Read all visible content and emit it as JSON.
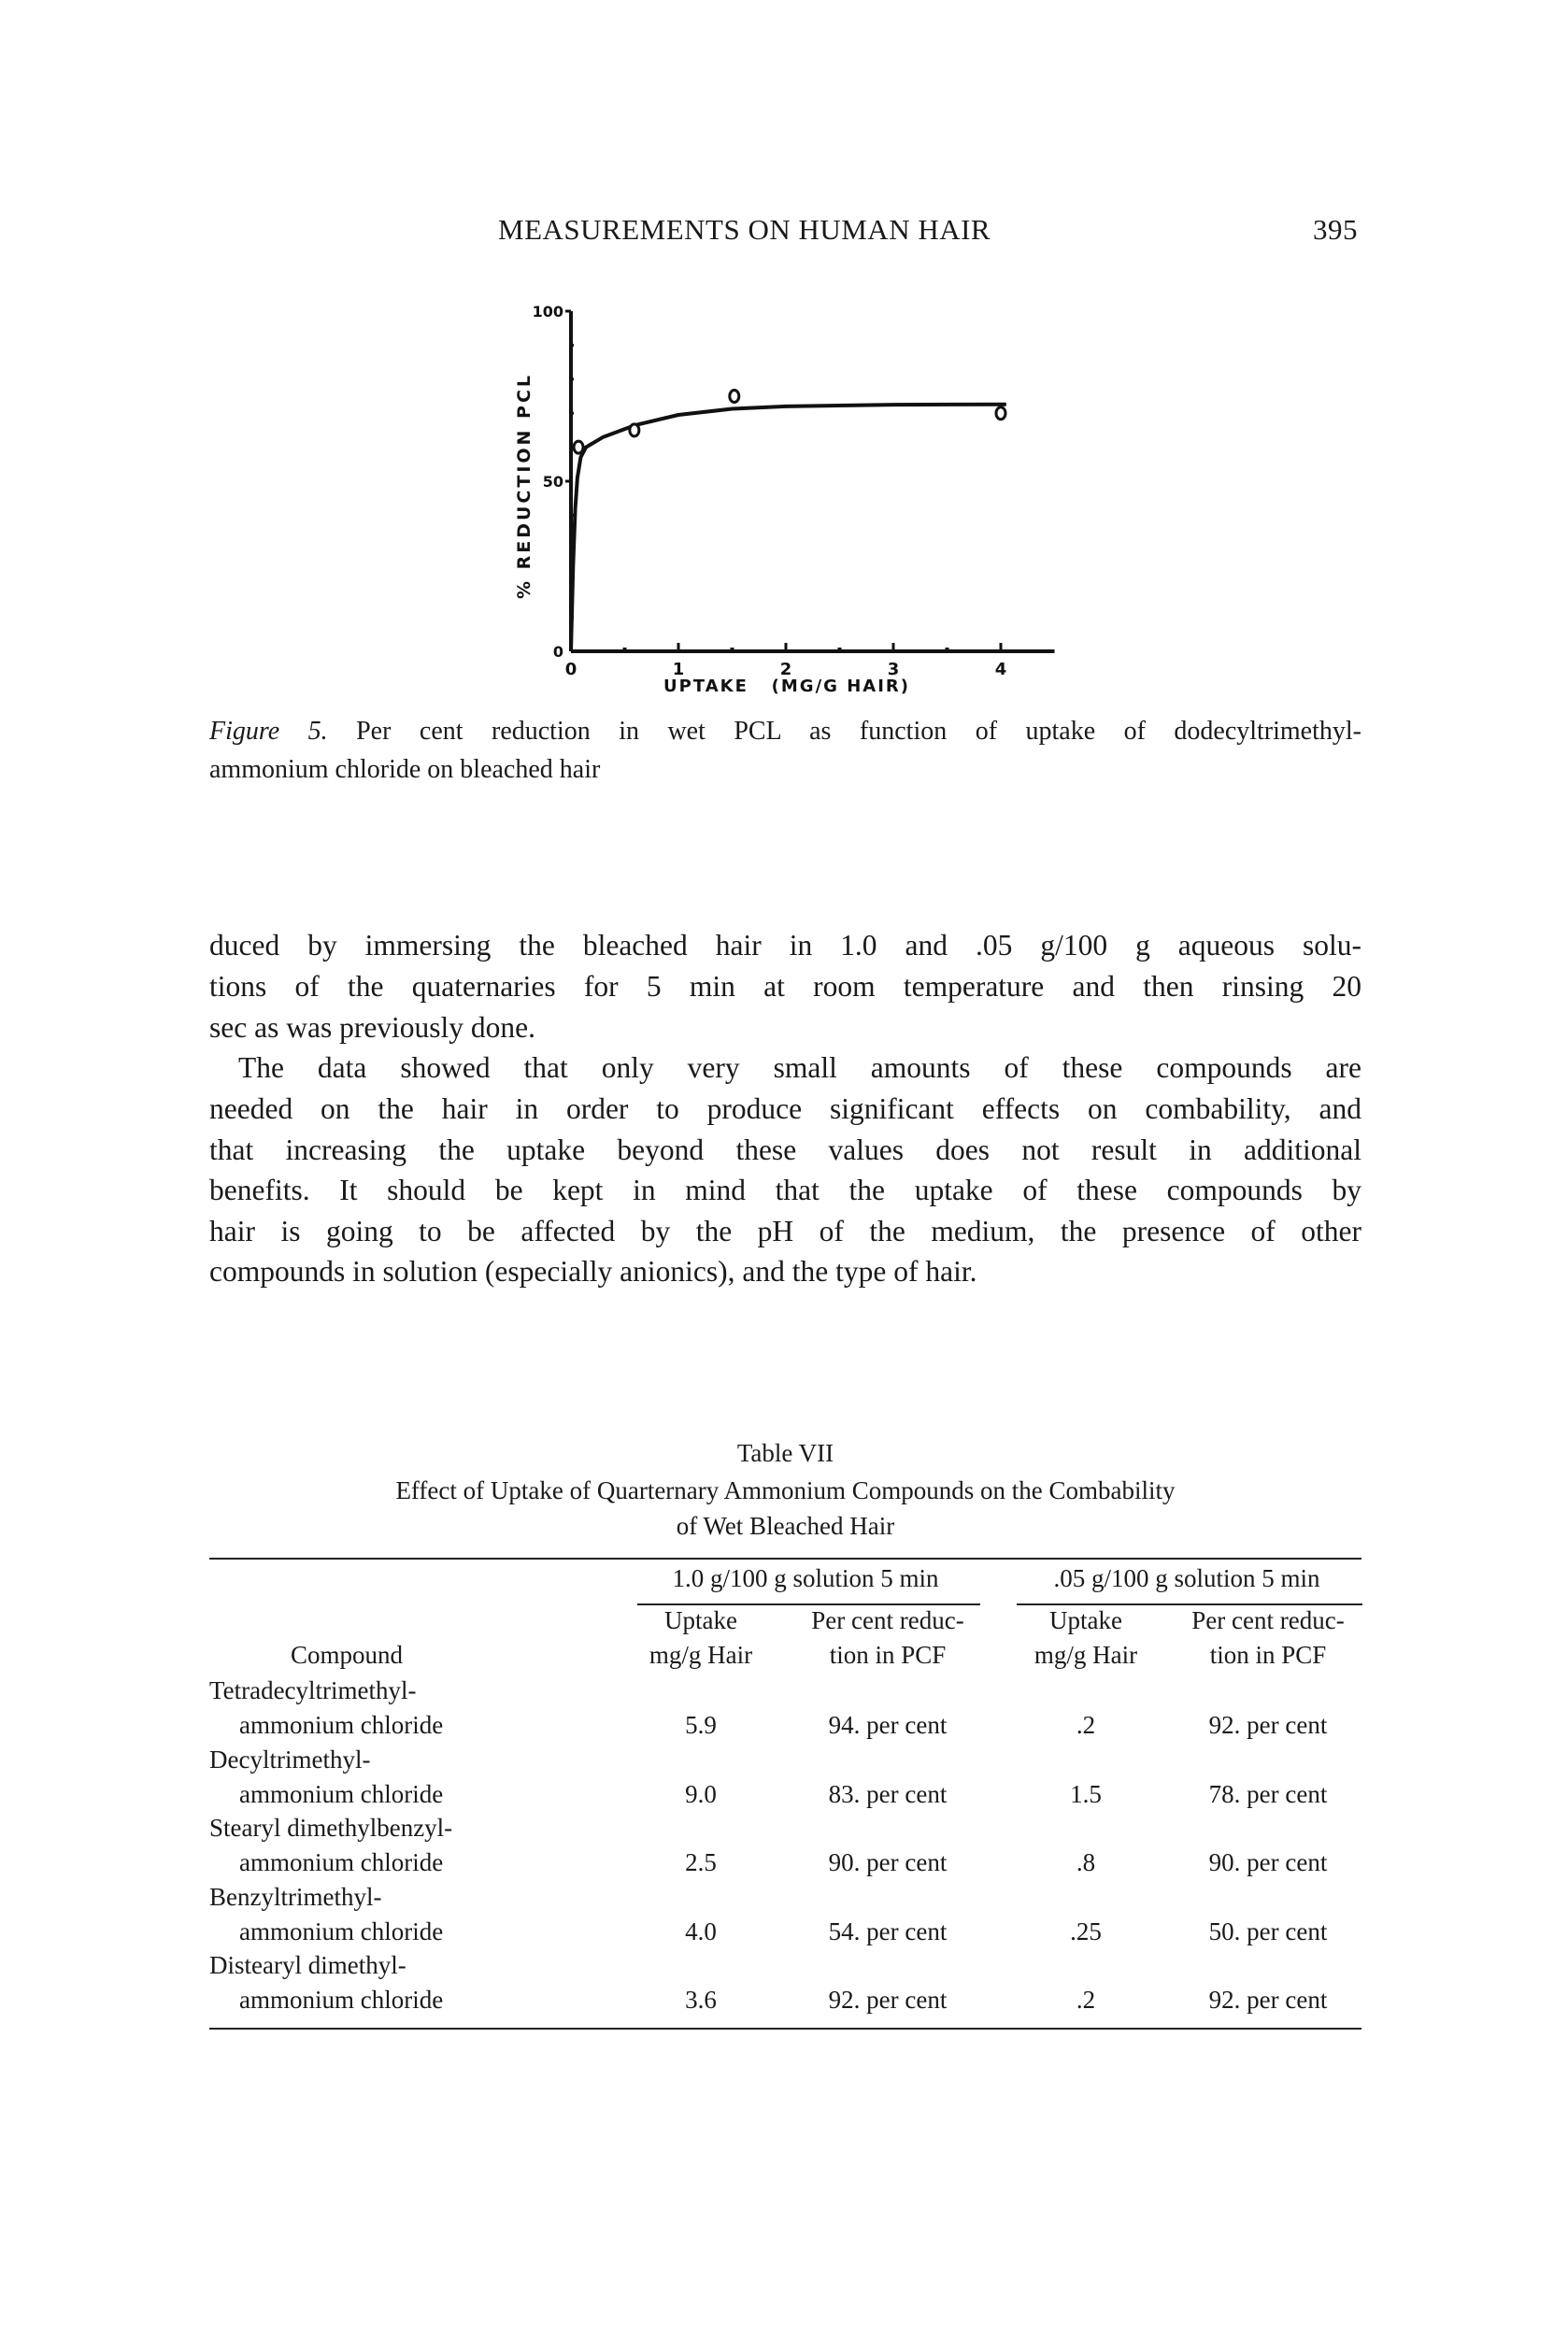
{
  "header": {
    "running_title": "MEASUREMENTS ON HUMAN HAIR",
    "page_number": "395"
  },
  "chart_data": {
    "type": "scatter",
    "title": "",
    "xlabel": "UPTAKE   (MG/G HAIR)",
    "ylabel": "% REDUCTION PCL",
    "xlim": [
      0,
      4.5
    ],
    "ylim": [
      0,
      100
    ],
    "x_ticks": [
      "0",
      "1",
      "2",
      "3",
      "4"
    ],
    "x_tick_values": [
      0,
      1,
      2,
      3,
      4
    ],
    "y_tick_labels": [
      "0",
      "50",
      "100"
    ],
    "y_tick_values": [
      0,
      50,
      100
    ],
    "grid": false,
    "points": [
      {
        "x": 0.07,
        "y": 60
      },
      {
        "x": 0.59,
        "y": 65
      },
      {
        "x": 1.52,
        "y": 75
      },
      {
        "x": 4.0,
        "y": 70
      }
    ],
    "fitted_curve": [
      {
        "x": 0,
        "y": 0
      },
      {
        "x": 0.02,
        "y": 25
      },
      {
        "x": 0.04,
        "y": 42
      },
      {
        "x": 0.06,
        "y": 51
      },
      {
        "x": 0.09,
        "y": 57
      },
      {
        "x": 0.14,
        "y": 60
      },
      {
        "x": 0.3,
        "y": 63
      },
      {
        "x": 0.6,
        "y": 66.5
      },
      {
        "x": 1.0,
        "y": 69.5
      },
      {
        "x": 1.5,
        "y": 71.3
      },
      {
        "x": 2.0,
        "y": 72
      },
      {
        "x": 3.0,
        "y": 72.5
      },
      {
        "x": 4.05,
        "y": 72.6
      }
    ]
  },
  "caption": {
    "label": "Figure 5.",
    "line1": "Per cent reduction in wet PCL as function of uptake of dodecyltrimethyl-",
    "line2": "ammonium chloride on bleached hair"
  },
  "body": {
    "p1": [
      "duced by immersing the bleached hair in 1.0 and .05 g/100 g aqueous solu-",
      "tions of the quaternaries for 5 min at room temperature and then rinsing 20",
      "sec as was previously done."
    ],
    "p2": [
      "The data showed that only very small amounts of these compounds are",
      "needed on the hair in order to produce significant effects on combability, and",
      "that increasing the uptake beyond these values does not result in additional",
      "benefits. It should be kept in mind that the uptake of these compounds by",
      "hair is going to be affected by the pH of the medium, the presence of other",
      "compounds in solution (especially anionics), and the type of hair."
    ]
  },
  "table": {
    "label": "Table VII",
    "title1": "Effect of Uptake of Quarternary Ammonium Compounds on the Combability",
    "title2": "of Wet Bleached Hair",
    "group1": "1.0 g/100 g solution 5 min",
    "group2": ".05 g/100 g solution 5 min",
    "col_compound": "Compound",
    "col_uptake_1": "Uptake",
    "col_uptake_2": "mg/g Hair",
    "col_red_1": "Per cent reduc-",
    "col_red_2": "tion in PCF",
    "rows": [
      {
        "name1": "Tetradecyltrimethyl-",
        "name2": "ammonium chloride",
        "u1": "5.9",
        "r1": "94. per cent",
        "u2": ".2",
        "r2": "92. per cent"
      },
      {
        "name1": "Decyltrimethyl-",
        "name2": "ammonium chloride",
        "u1": "9.0",
        "r1": "83. per cent",
        "u2": "1.5",
        "r2": "78. per cent"
      },
      {
        "name1": "Stearyl dimethylbenzyl-",
        "name2": "ammonium chloride",
        "u1": "2.5",
        "r1": "90. per cent",
        "u2": ".8",
        "r2": "90. per cent"
      },
      {
        "name1": "Benzyltrimethyl-",
        "name2": "ammonium chloride",
        "u1": "4.0",
        "r1": "54. per cent",
        "u2": ".25",
        "r2": "50. per cent"
      },
      {
        "name1": "Distearyl dimethyl-",
        "name2": "ammonium chloride",
        "u1": "3.6",
        "r1": "92. per cent",
        "u2": ".2",
        "r2": "92. per cent"
      }
    ]
  }
}
